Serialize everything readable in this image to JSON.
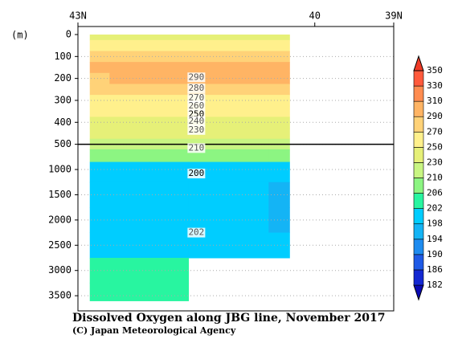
{
  "chart_data": {
    "type": "contour",
    "title": "Dissolved Oxygen along JBG line, November 2017",
    "subtitle": "(C) Japan Meteorological Agency",
    "ylabel": "(m)",
    "x": [
      42.85,
      42.35,
      41.85,
      41.35,
      40.85,
      40.32
    ],
    "depths": [
      0,
      50,
      100,
      150,
      200,
      250,
      300,
      350,
      400,
      450,
      500,
      700,
      1000,
      1500,
      2000,
      2500,
      3000,
      3500
    ],
    "values": [
      [
        245,
        245,
        246,
        247,
        246,
        246
      ],
      [
        262,
        262,
        264,
        265,
        264,
        262
      ],
      [
        284,
        286,
        287,
        288,
        288,
        286
      ],
      [
        292,
        296,
        296,
        297,
        296,
        295
      ],
      [
        288,
        290,
        291,
        292,
        292,
        290
      ],
      [
        278,
        280,
        281,
        282,
        282,
        280
      ],
      [
        266,
        267,
        268,
        268,
        268,
        266
      ],
      [
        256,
        255,
        257,
        257,
        257,
        255
      ],
      [
        246,
        243,
        246,
        247,
        248,
        248
      ],
      [
        236,
        234,
        236,
        237,
        238,
        238
      ],
      [
        224,
        223,
        224,
        225,
        226,
        226
      ],
      [
        208,
        208,
        209,
        208,
        208,
        208
      ],
      [
        200,
        199,
        200,
        199,
        199,
        199
      ],
      [
        199,
        199,
        199,
        199,
        199,
        197
      ],
      [
        199,
        199,
        199,
        199,
        199,
        197
      ],
      [
        201,
        201,
        201,
        201,
        201,
        201
      ],
      [
        203,
        203,
        203,
        null,
        null,
        null
      ],
      [
        203,
        203,
        203,
        null,
        null,
        null
      ]
    ],
    "contour_labels": [
      {
        "value": 290,
        "lat": 41.5,
        "depth": 195
      },
      {
        "value": 280,
        "lat": 41.5,
        "depth": 245
      },
      {
        "value": 270,
        "lat": 41.5,
        "depth": 290
      },
      {
        "value": 260,
        "lat": 41.5,
        "depth": 325
      },
      {
        "value": 250,
        "lat": 41.5,
        "depth": 365
      },
      {
        "value": 240,
        "lat": 41.5,
        "depth": 395
      },
      {
        "value": 230,
        "lat": 41.5,
        "depth": 435
      },
      {
        "value": 210,
        "lat": 41.5,
        "depth": 575
      },
      {
        "value": 200,
        "lat": 41.5,
        "depth": 1080
      },
      {
        "value": 202,
        "lat": 41.5,
        "depth": 2250
      }
    ],
    "xlim": [
      43,
      39
    ],
    "xticks": [
      {
        "value": 43,
        "label": "43N"
      },
      40,
      {
        "value": 39,
        "label": "39N"
      }
    ],
    "ylim": [
      0,
      3800
    ],
    "ybreak": 500,
    "yticks": [
      0,
      100,
      200,
      300,
      400,
      500,
      1000,
      1500,
      2000,
      2500,
      3000,
      3500
    ],
    "grid": true,
    "levels": [
      182,
      186,
      190,
      194,
      198,
      202,
      206,
      210,
      230,
      250,
      270,
      290,
      310,
      330,
      350
    ],
    "colors": [
      "#0a0ab4",
      "#1428d2",
      "#1e5ae6",
      "#1e8cf0",
      "#14b4f5",
      "#00cdff",
      "#28f5a0",
      "#8cf582",
      "#c8f582",
      "#e6f078",
      "#fff08c",
      "#ffd278",
      "#ffb464",
      "#ff8c50",
      "#ff5a3c",
      "#f03c28"
    ]
  }
}
